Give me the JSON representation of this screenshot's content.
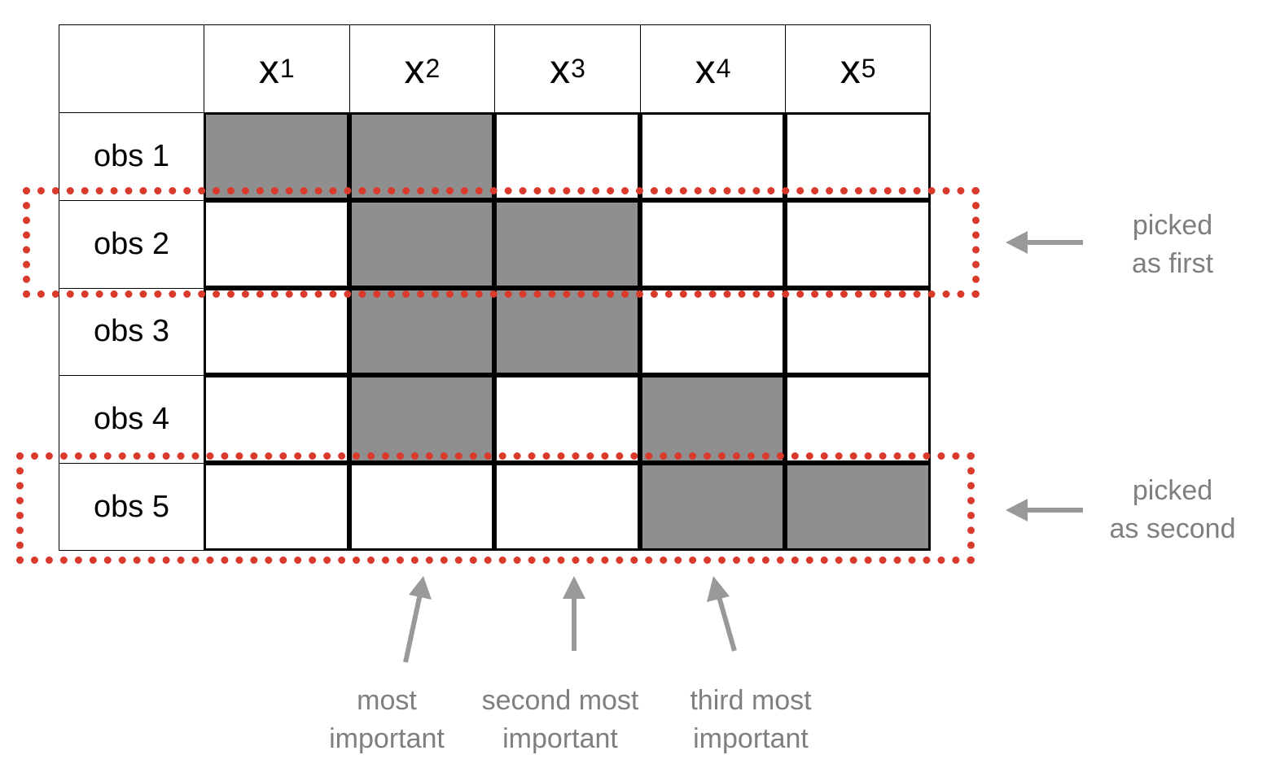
{
  "columns": [
    {
      "var": "x",
      "sub": "1"
    },
    {
      "var": "x",
      "sub": "2"
    },
    {
      "var": "x",
      "sub": "3"
    },
    {
      "var": "x",
      "sub": "4"
    },
    {
      "var": "x",
      "sub": "5"
    }
  ],
  "rows": [
    {
      "label": "obs 1",
      "filled": [
        true,
        true,
        false,
        false,
        false
      ]
    },
    {
      "label": "obs 2",
      "filled": [
        false,
        true,
        true,
        false,
        false
      ]
    },
    {
      "label": "obs 3",
      "filled": [
        false,
        true,
        true,
        false,
        false
      ]
    },
    {
      "label": "obs 4",
      "filled": [
        false,
        true,
        false,
        true,
        false
      ]
    },
    {
      "label": "obs 5",
      "filled": [
        false,
        false,
        false,
        true,
        true
      ]
    }
  ],
  "annotations": {
    "picked_first": [
      "picked",
      "as first"
    ],
    "picked_second": [
      "picked",
      "as second"
    ],
    "most_important": [
      "most",
      "important"
    ],
    "second_most_important": [
      "second most",
      "important"
    ],
    "third_most_important": [
      "third most",
      "important"
    ]
  },
  "colors": {
    "filled_cell": "#8f8f8f",
    "highlight_box": "#d93a2b",
    "annotation": "#7f7f7f"
  }
}
